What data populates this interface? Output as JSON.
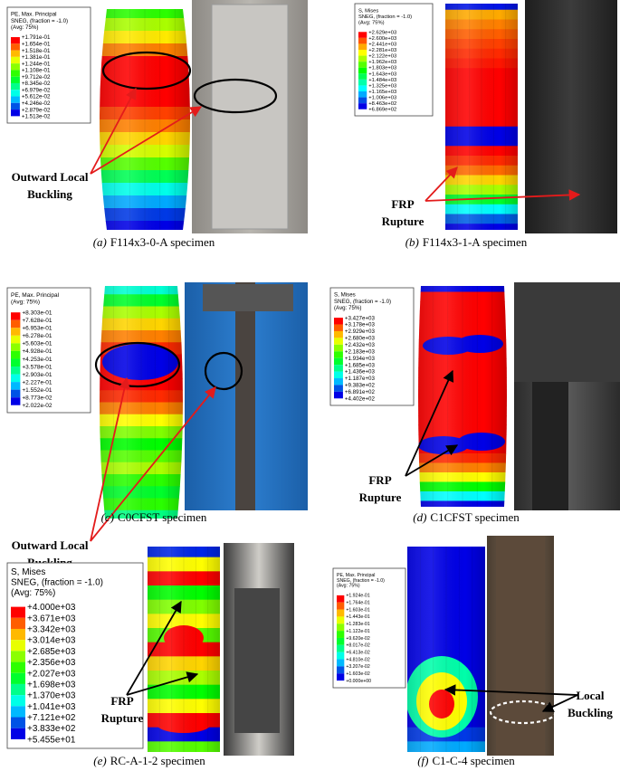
{
  "figure": {
    "panels": [
      {
        "label": "(a)",
        "caption": "F114x3-0-A specimen",
        "legend": {
          "title": [
            "PE, Max. Principal",
            "SNEG, (fraction = -1.0)",
            "(Avg: 75%)"
          ],
          "values": [
            "+1.791e-01",
            "+1.654e-01",
            "+1.518e-01",
            "+1.381e-01",
            "+1.244e-01",
            "+1.108e-01",
            "+9.712e-02",
            "+8.345e-02",
            "+6.979e-02",
            "+5.612e-02",
            "+4.246e-02",
            "+2.879e-02",
            "+1.513e-02"
          ]
        },
        "annotation": [
          "Outward Local",
          "Buckling"
        ]
      },
      {
        "label": "(b)",
        "caption": "F114x3-1-A specimen",
        "legend": {
          "title": [
            "S, Mises",
            "SNEG, (fraction = -1.0)",
            "(Avg: 75%)"
          ],
          "values": [
            "+2.629e+03",
            "+2.600e+03",
            "+2.441e+03",
            "+2.281e+03",
            "+2.122e+03",
            "+1.962e+03",
            "+1.803e+03",
            "+1.643e+03",
            "+1.484e+03",
            "+1.325e+03",
            "+1.165e+03",
            "+1.006e+03",
            "+8.463e+02",
            "+6.869e+02"
          ]
        },
        "annotation": [
          "FRP",
          "Rupture"
        ]
      },
      {
        "label": "(c)",
        "caption": "C0CFST specimen",
        "legend": {
          "title": [
            "PE, Max. Principal",
            "(Avg: 75%)"
          ],
          "values": [
            "+8.303e-01",
            "+7.628e-01",
            "+6.953e-01",
            "+6.278e-01",
            "+5.603e-01",
            "+4.928e-01",
            "+4.253e-01",
            "+3.578e-01",
            "+2.903e-01",
            "+2.227e-01",
            "+1.552e-01",
            "+8.773e-02",
            "+2.022e-02"
          ]
        },
        "annotation": [
          "Outward Local",
          "Buckling"
        ]
      },
      {
        "label": "(d)",
        "caption": "C1CFST specimen",
        "legend": {
          "title": [
            "S, Mises",
            "SNEG, (fraction = -1.0)",
            "(Avg: 75%)"
          ],
          "values": [
            "+3.427e+03",
            "+3.178e+03",
            "+2.929e+03",
            "+2.680e+03",
            "+2.432e+03",
            "+2.183e+03",
            "+1.934e+03",
            "+1.685e+03",
            "+1.436e+03",
            "+1.187e+03",
            "+9.383e+02",
            "+6.891e+02",
            "+4.402e+02"
          ]
        },
        "annotation": [
          "FRP",
          "Rupture"
        ]
      },
      {
        "label": "(e)",
        "caption": "RC-A-1-2 specimen",
        "legend": {
          "title": [
            "S, Mises",
            "SNEG, (fraction = -1.0)",
            "(Avg: 75%)"
          ],
          "values": [
            "+4.000e+03",
            "+3.671e+03",
            "+3.342e+03",
            "+3.014e+03",
            "+2.685e+03",
            "+2.356e+03",
            "+2.027e+03",
            "+1.698e+03",
            "+1.370e+03",
            "+1.041e+03",
            "+7.121e+02",
            "+3.833e+02",
            "+5.455e+01"
          ]
        },
        "annotation": [
          "FRP",
          "Rupture"
        ]
      },
      {
        "label": "(f)",
        "caption": "C1-C-4 specimen",
        "legend": {
          "title": [
            "PE, Max. Principal",
            "SNEG, (fraction = -1.0)",
            "(Avg: 75%)"
          ],
          "values": [
            "+1.924e-01",
            "+1.764e-01",
            "+1.603e-01",
            "+1.443e-01",
            "+1.283e-01",
            "+1.122e-01",
            "+9.620e-02",
            "+8.017e-02",
            "+6.413e-02",
            "+4.810e-02",
            "+3.207e-02",
            "+1.603e-02",
            "+0.000e+00"
          ]
        },
        "annotation": [
          "Local",
          "Buckling"
        ]
      }
    ]
  }
}
